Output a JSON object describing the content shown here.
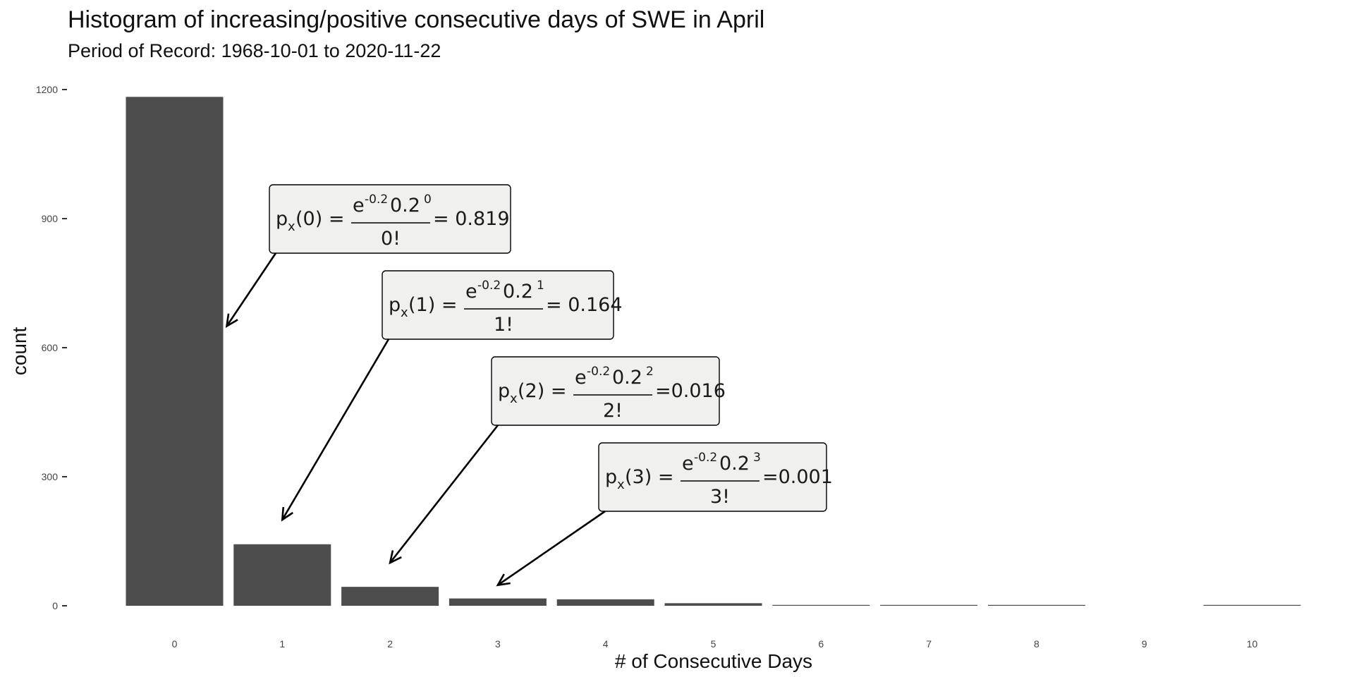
{
  "chart_data": {
    "type": "bar",
    "title": "Histogram of increasing/positive consecutive days of  SWE in April",
    "subtitle": "Period of Record: 1968-10-01 to 2020-11-22",
    "xlabel": "# of Consecutive Days",
    "ylabel": "count",
    "categories": [
      "0",
      "1",
      "2",
      "3",
      "4",
      "5",
      "6",
      "7",
      "8",
      "9",
      "10"
    ],
    "values": [
      1183,
      143,
      44,
      17,
      15,
      6,
      1,
      1,
      1,
      0,
      1
    ],
    "ylim": [
      0,
      1200
    ],
    "yticks": [
      "0",
      "300",
      "600",
      "900",
      "1200"
    ],
    "grid": false,
    "bar_color": "#4d4d4d",
    "annotations": [
      {
        "k": "0",
        "lead": "p",
        "sub": "x",
        "arg": "(0) =",
        "base": "e",
        "exp": "-0.2",
        "rate": "0.2",
        "pow": "0",
        "den": "0!",
        "result": "= 0.819",
        "target_category": "0",
        "target_count": 650
      },
      {
        "k": "1",
        "lead": "p",
        "sub": "x",
        "arg": "(1) =",
        "base": "e",
        "exp": "-0.2",
        "rate": "0.2",
        "pow": "1",
        "den": "1!",
        "result": "= 0.164",
        "target_category": "1",
        "target_count": 200
      },
      {
        "k": "2",
        "lead": "p",
        "sub": "x",
        "arg": "(2) =",
        "base": "e",
        "exp": "-0.2",
        "rate": "0.2",
        "pow": "2",
        "den": "2!",
        "result": "=0.016",
        "target_category": "2",
        "target_count": 100
      },
      {
        "k": "3",
        "lead": "p",
        "sub": "x",
        "arg": "(3) =",
        "base": "e",
        "exp": "-0.2",
        "rate": "0.2",
        "pow": "3",
        "den": "3!",
        "result": "=0.001",
        "target_category": "3",
        "target_count": 48
      }
    ]
  }
}
